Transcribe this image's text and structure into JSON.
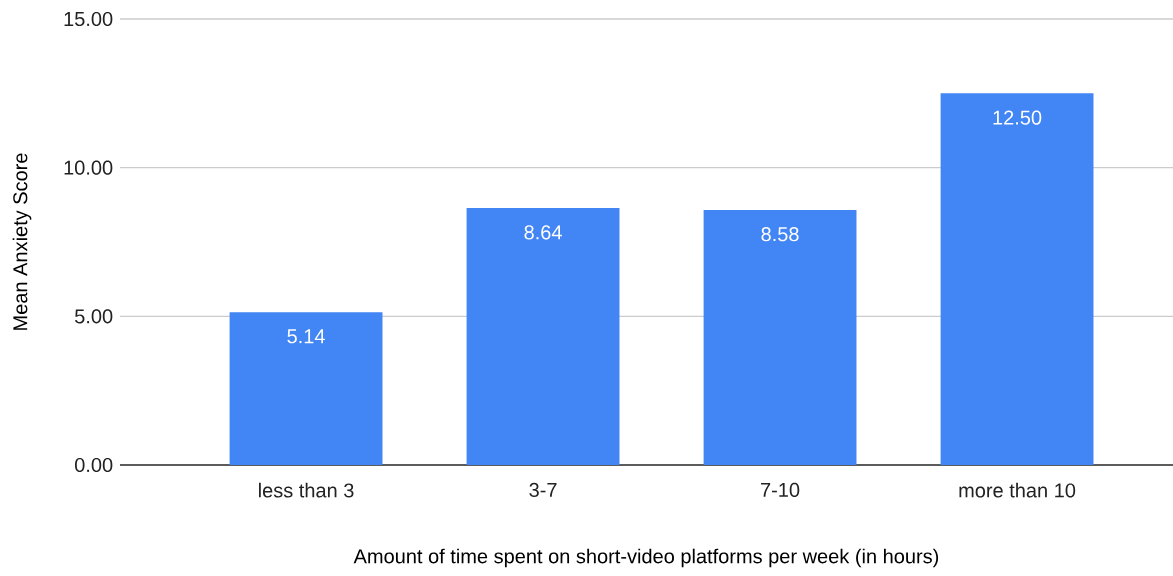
{
  "chart_data": {
    "type": "bar",
    "xlabel": "Amount of time spent on short-video platforms per week (in hours)",
    "ylabel": "Mean Anxiety Score",
    "categories": [
      "less than 3",
      "3-7",
      "7-10",
      "more than 10"
    ],
    "values": [
      5.14,
      8.64,
      8.58,
      12.5
    ],
    "value_labels": [
      "5.14",
      "8.64",
      "8.58",
      "12.50"
    ],
    "color": "#4285f4",
    "ylim": [
      0,
      15
    ],
    "yticks": [
      {
        "value": 0,
        "label": "0.00"
      },
      {
        "value": 5,
        "label": "5.00"
      },
      {
        "value": 10,
        "label": "10.00"
      },
      {
        "value": 15,
        "label": "15.00"
      }
    ],
    "grid": "y"
  }
}
